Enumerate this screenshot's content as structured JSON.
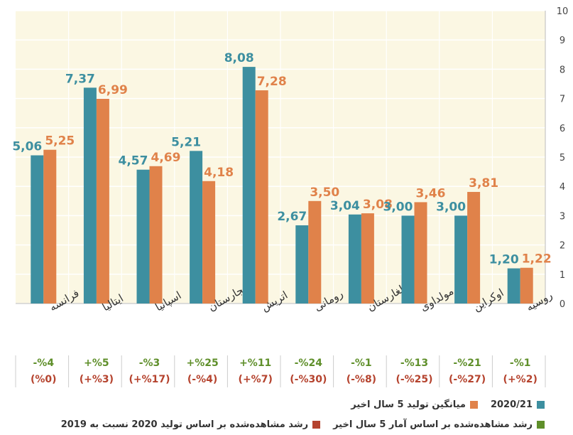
{
  "colors": {
    "teal": "#3d8fa0",
    "orange": "#e0824a",
    "plot_bg": "#fbf7e3",
    "green_text": "#5f8f2a",
    "red_text": "#b5432e",
    "label_teal": "#3d8fa0",
    "label_orange": "#e0824a"
  },
  "chart_data": {
    "type": "bar",
    "categories": [
      "فرانسه",
      "ایتالیا",
      "اسپانیا",
      "مجارستان",
      "اتریش",
      "رومانی",
      "بلغارستان",
      "مولداوی",
      "اوکراین",
      "روسیه"
    ],
    "series": [
      {
        "name": "2020/21",
        "values": [
          5.06,
          7.37,
          4.57,
          5.21,
          8.08,
          2.67,
          3.04,
          3.0,
          3.0,
          1.2
        ],
        "labels": [
          "5,06",
          "7,37",
          "4,57",
          "5,21",
          "8,08",
          "2,67",
          "3,04",
          "3,00",
          "3,00",
          "1,20"
        ]
      },
      {
        "name": "میانگین تولید 5 سال اخیر",
        "values": [
          5.25,
          6.99,
          4.69,
          4.18,
          7.28,
          3.5,
          3.08,
          3.46,
          3.81,
          1.22
        ],
        "labels": [
          "5,25",
          "6,99",
          "4,69",
          "4,18",
          "7,28",
          "3,50",
          "3,08",
          "3,46",
          "3,81",
          "1,22"
        ]
      }
    ],
    "growth_5yr": [
      "-%4",
      "+%5",
      "-%3",
      "+%25",
      "+%11",
      "-%24",
      "-%1",
      "-%13",
      "-%21",
      "-%1"
    ],
    "growth_vs_2019": [
      "(%0)",
      "(+%3)",
      "(+%17)",
      "(-%4)",
      "(+%7)",
      "(-%30)",
      "(-%8)",
      "(-%25)",
      "(-%27)",
      "(+%2)"
    ],
    "ylim": [
      0,
      10
    ],
    "yticks": [
      "0",
      "1",
      "2",
      "3",
      "4",
      "5",
      "6",
      "7",
      "8",
      "9",
      "10"
    ],
    "grid": true,
    "legend_position": "bottom"
  },
  "legend": {
    "row1": [
      {
        "label": "2020/21",
        "color": "#3d8fa0"
      },
      {
        "label": "میانگین تولید 5 سال اخیر",
        "color": "#e0824a"
      }
    ],
    "row2": [
      {
        "label": "رشد مشاهده‌شده بر اساس آمار 5 سال اخیر",
        "color": "#5f8f2a"
      },
      {
        "label": "رشد مشاهده‌شده بر اساس تولید 2020 نسبت به 2019",
        "color": "#b5432e"
      }
    ]
  }
}
